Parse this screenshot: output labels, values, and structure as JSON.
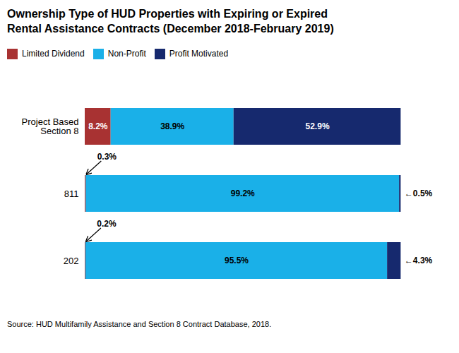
{
  "chart_data": {
    "type": "bar",
    "orientation": "horizontal",
    "stacked": true,
    "title": "Ownership Type of HUD Properties with Expiring or Expired\nRental Assistance Contracts (December 2018-February 2019)",
    "source": "Source: HUD Multifamily Assistance and Section 8 Contract Database, 2018.",
    "categories": [
      "Project Based\nSection 8",
      "811",
      "202"
    ],
    "series": [
      {
        "name": "Limited Dividend",
        "color": "#a83232",
        "values": [
          8.2,
          0.3,
          0.2
        ],
        "value_labels": [
          "8.2%",
          "0.3%",
          "0.2%"
        ]
      },
      {
        "name": "Non-Profit",
        "color": "#1ab0e8",
        "values": [
          38.9,
          99.2,
          95.5
        ],
        "value_labels": [
          "38.9%",
          "99.2%",
          "95.5%"
        ]
      },
      {
        "name": "Profit Motivated",
        "color": "#16296e",
        "values": [
          52.9,
          0.5,
          4.3
        ],
        "value_labels": [
          "52.9%",
          "←0.5%",
          "←4.3%"
        ]
      }
    ],
    "xlim": [
      0,
      114
    ],
    "tick_labels": "y",
    "data_labels": true,
    "legend": "top",
    "grid": false
  }
}
